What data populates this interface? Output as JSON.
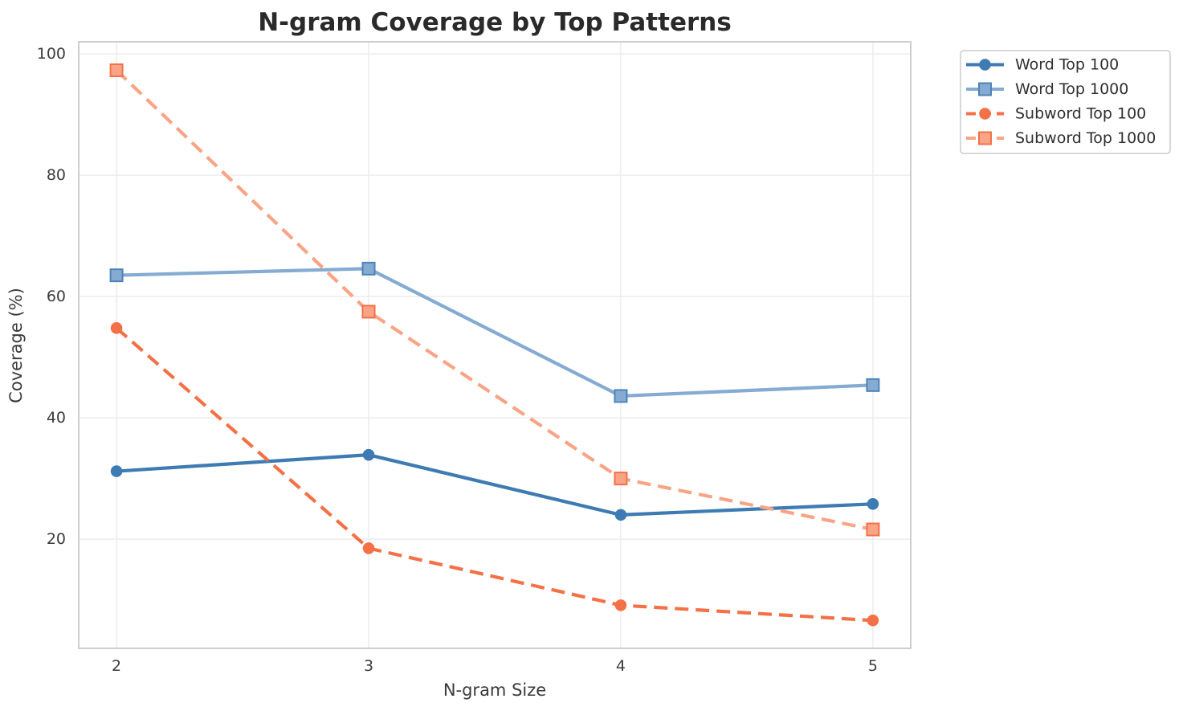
{
  "chart_data": {
    "type": "line",
    "title": "N-gram Coverage by Top Patterns",
    "xlabel": "N-gram Size",
    "ylabel": "Coverage (%)",
    "x": [
      2,
      3,
      4,
      5
    ],
    "xtick_labels": [
      "2",
      "3",
      "4",
      "5"
    ],
    "ytick_values": [
      20,
      40,
      60,
      80,
      100
    ],
    "ytick_labels": [
      "20",
      "40",
      "60",
      "80",
      "100"
    ],
    "xlim": [
      1.85,
      5.15
    ],
    "ylim": [
      2,
      102
    ],
    "grid": true,
    "legend_position": "outside-upper-right",
    "series": [
      {
        "name": "Word Top 100",
        "values": [
          31.2,
          33.9,
          24.0,
          25.8
        ],
        "color": "#3E7BB3",
        "marker_edge": "#3E7BB3",
        "linestyle": "solid",
        "marker": "circle"
      },
      {
        "name": "Word Top 1000",
        "values": [
          63.5,
          64.6,
          43.6,
          45.4
        ],
        "color": "#85ABD2",
        "marker_edge": "#4D83B8",
        "linestyle": "solid",
        "marker": "square"
      },
      {
        "name": "Subword Top 100",
        "values": [
          54.8,
          18.5,
          9.1,
          6.6
        ],
        "color": "#F47147",
        "marker_edge": "#F47147",
        "linestyle": "dashed",
        "marker": "circle"
      },
      {
        "name": "Subword Top 1000",
        "values": [
          97.3,
          57.5,
          30.0,
          21.6
        ],
        "color": "#F9A486",
        "marker_edge": "#F37146",
        "linestyle": "dashed",
        "marker": "square"
      }
    ],
    "colors": {
      "grid": "#ebebed",
      "spine": "#c9c9cd",
      "background": "#ffffff",
      "legend_border": "#cccccc",
      "title_text": "#2a2a2a",
      "tick_text": "#3b3b3b"
    }
  }
}
